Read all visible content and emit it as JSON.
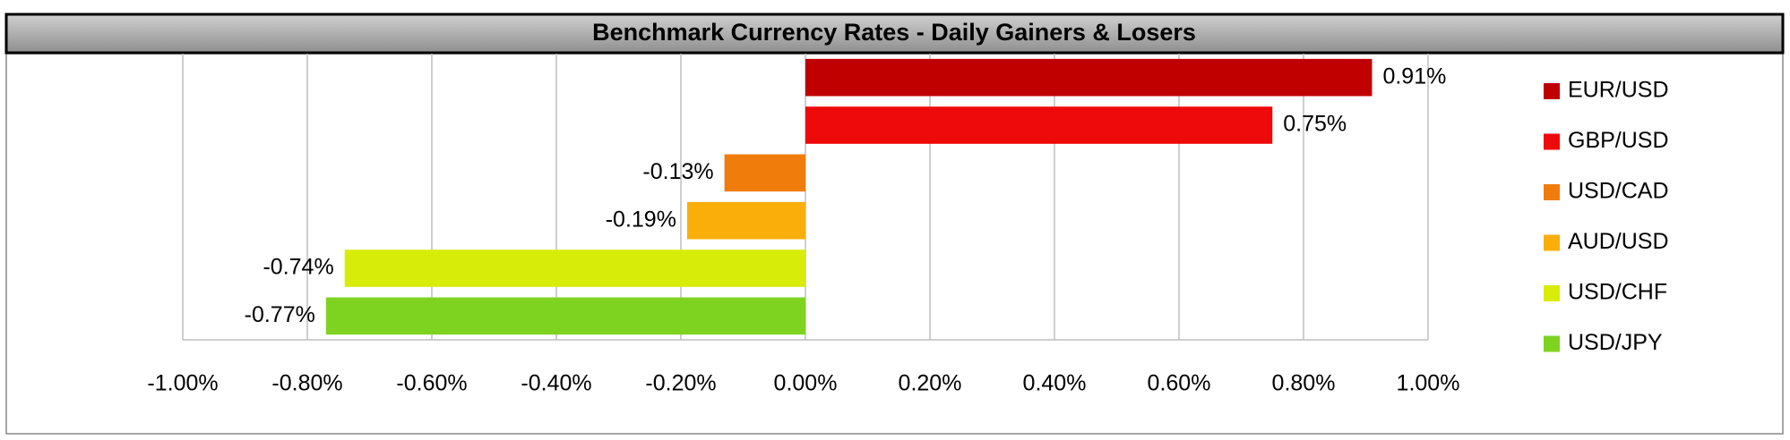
{
  "chart_data": {
    "type": "hbar",
    "title": "Benchmark Currency Rates - Daily Gainers & Losers",
    "categories": [
      "EUR/USD",
      "GBP/USD",
      "USD/CAD",
      "AUD/USD",
      "USD/CHF",
      "USD/JPY"
    ],
    "values": [
      0.91,
      0.75,
      -0.13,
      -0.19,
      -0.74,
      -0.77
    ],
    "value_labels": [
      "0.91%",
      "0.75%",
      "-0.13%",
      "-0.19%",
      "-0.74%",
      "-0.77%"
    ],
    "colors": [
      "#c00000",
      "#ee0a0a",
      "#f07c0c",
      "#f9ae0a",
      "#d8ec0a",
      "#7ed321"
    ],
    "xlim": [
      -1,
      1
    ],
    "xticks": [
      {
        "value": -1,
        "label": "-1.00%"
      },
      {
        "value": -0.8,
        "label": "-0.80%"
      },
      {
        "value": -0.6,
        "label": "-0.60%"
      },
      {
        "value": -0.4,
        "label": "-0.40%"
      },
      {
        "value": -0.2,
        "label": "-0.20%"
      },
      {
        "value": 0,
        "label": "0.00%"
      },
      {
        "value": 0.2,
        "label": "0.20%"
      },
      {
        "value": 0.4,
        "label": "0.40%"
      },
      {
        "value": 0.6,
        "label": "0.60%"
      },
      {
        "value": 0.8,
        "label": "0.80%"
      },
      {
        "value": 1,
        "label": "1.00%"
      }
    ],
    "grid": true,
    "legend": "right"
  }
}
